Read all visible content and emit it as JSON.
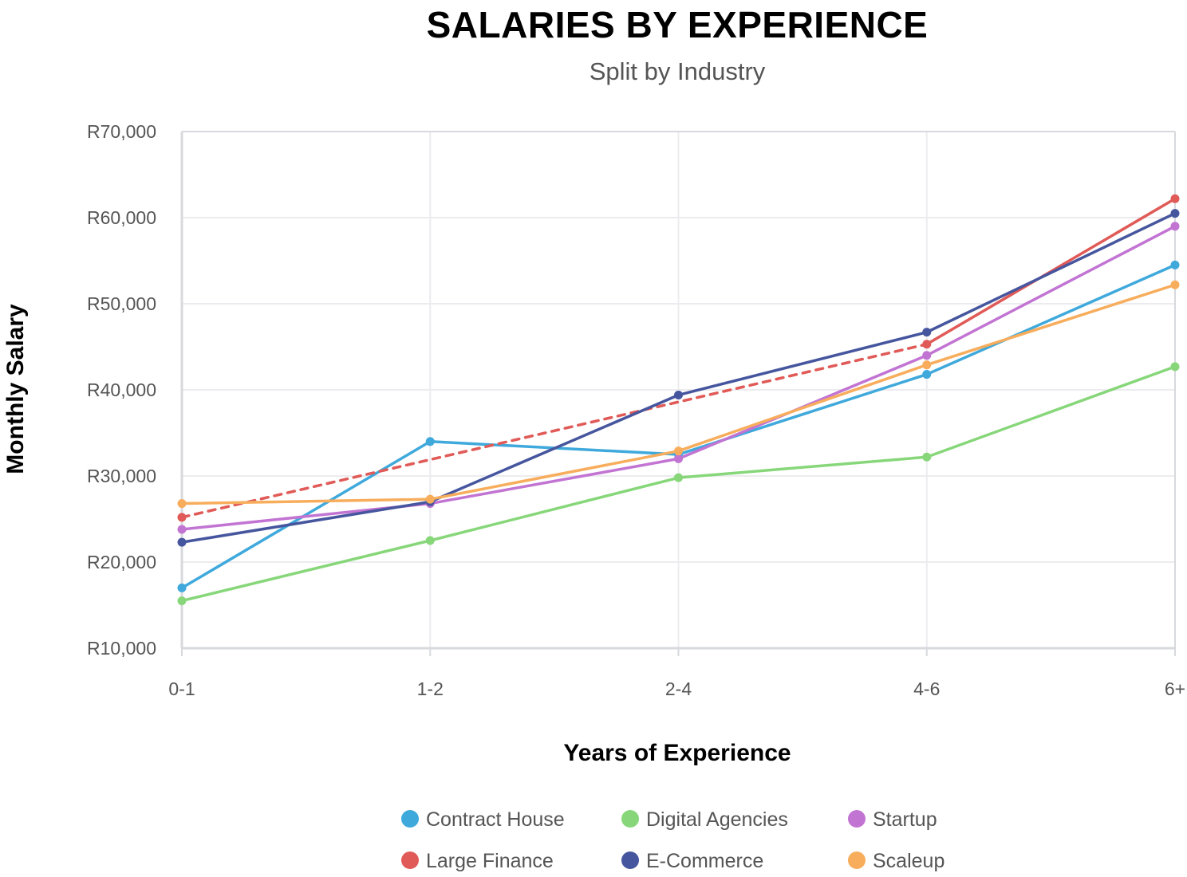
{
  "chart_data": {
    "type": "line",
    "title": "SALARIES BY EXPERIENCE",
    "subtitle": "Split by Industry",
    "xlabel": "Years of Experience",
    "ylabel": "Monthly Salary",
    "categories": [
      "0-1",
      "1-2",
      "2-4",
      "4-6",
      "6+"
    ],
    "ylim": [
      10000,
      70000
    ],
    "yticks": [
      10000,
      20000,
      30000,
      40000,
      50000,
      60000,
      70000
    ],
    "ytick_labels": [
      "R10,000",
      "R20,000",
      "R30,000",
      "R40,000",
      "R50,000",
      "R60,000",
      "R70,000"
    ],
    "grid": true,
    "legend_position": "bottom",
    "series": [
      {
        "name": "Contract House",
        "color": "#3fa9dc",
        "values": [
          17000,
          34000,
          32500,
          41800,
          54500
        ]
      },
      {
        "name": "Digital Agencies",
        "color": "#87d77a",
        "values": [
          15500,
          22500,
          29800,
          32200,
          42700
        ]
      },
      {
        "name": "Startup",
        "color": "#c274d3",
        "values": [
          23800,
          26800,
          32000,
          44000,
          59000
        ]
      },
      {
        "name": "Large Finance",
        "color": "#e05a57",
        "values": [
          25200,
          null,
          null,
          45300,
          62200
        ],
        "dashed_trend": true
      },
      {
        "name": "E-Commerce",
        "color": "#46569e",
        "values": [
          22300,
          27000,
          39400,
          46700,
          60500
        ]
      },
      {
        "name": "Scaleup",
        "color": "#f7ad5c",
        "values": [
          26800,
          27300,
          32900,
          42900,
          52200
        ]
      }
    ]
  }
}
